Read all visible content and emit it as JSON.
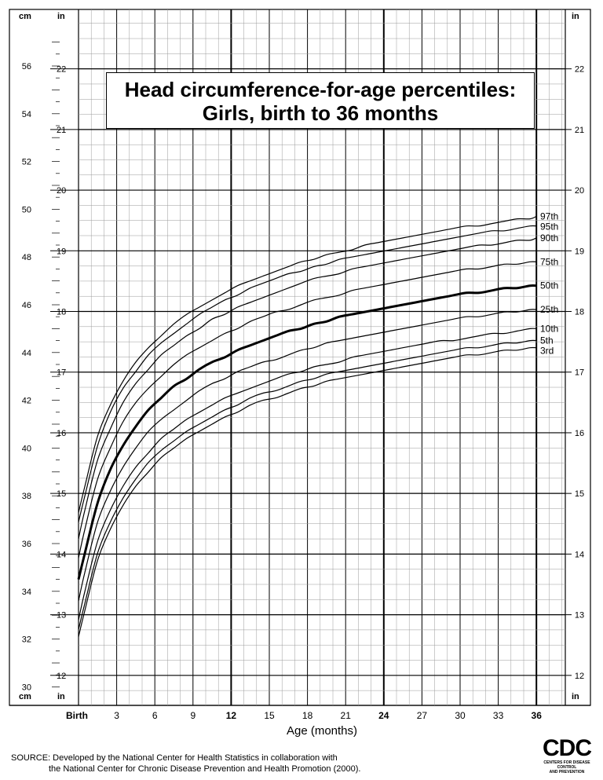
{
  "chart_data": {
    "type": "line",
    "title": "Head circumference-for-age percentiles:",
    "subtitle": "Girls, birth to 36 months",
    "xlabel": "Age (months)",
    "x_tick_labels": [
      "Birth",
      "3",
      "6",
      "9",
      "12",
      "15",
      "18",
      "21",
      "24",
      "27",
      "30",
      "33",
      "36"
    ],
    "x_tick_values": [
      0,
      3,
      6,
      9,
      12,
      15,
      18,
      21,
      24,
      27,
      30,
      33,
      36
    ],
    "xlim": [
      0,
      36
    ],
    "left_axis": {
      "unit": "cm",
      "ticks": [
        "30",
        "32",
        "34",
        "36",
        "38",
        "40",
        "42",
        "44",
        "46",
        "48",
        "50",
        "52",
        "54",
        "56"
      ],
      "tick_values": [
        30,
        32,
        34,
        36,
        38,
        40,
        42,
        44,
        46,
        48,
        50,
        52,
        54,
        56
      ],
      "range": [
        29.8,
        57.5
      ]
    },
    "inch_axis": {
      "unit": "in",
      "ticks": [
        "12",
        "13",
        "14",
        "15",
        "16",
        "17",
        "18",
        "19",
        "20",
        "21",
        "22"
      ],
      "tick_values": [
        12,
        13,
        14,
        15,
        16,
        17,
        18,
        19,
        20,
        21,
        22
      ]
    },
    "x": [
      0,
      0.5,
      1.5,
      2.5,
      3.5,
      4.5,
      5.5,
      6.5,
      7.5,
      8.5,
      9.5,
      10.5,
      11.5,
      12.5,
      13.5,
      14.5,
      15.5,
      16.5,
      17.5,
      18.5,
      19.5,
      20.5,
      21.5,
      22.5,
      23.5,
      24.5,
      25.5,
      26.5,
      27.5,
      28.5,
      29.5,
      30.5,
      31.5,
      32.5,
      33.5,
      34.5,
      35.5,
      36
    ],
    "series": [
      {
        "name": "97th",
        "values": [
          37.3,
          38.4,
          40.5,
          41.8,
          42.8,
          43.6,
          44.2,
          44.7,
          45.2,
          45.6,
          45.9,
          46.2,
          46.5,
          46.8,
          47.0,
          47.2,
          47.4,
          47.6,
          47.8,
          47.9,
          48.1,
          48.2,
          48.3,
          48.5,
          48.6,
          48.7,
          48.8,
          48.9,
          49.0,
          49.1,
          49.2,
          49.3,
          49.3,
          49.4,
          49.5,
          49.6,
          49.6,
          49.7
        ]
      },
      {
        "name": "95th",
        "values": [
          36.9,
          38.0,
          40.1,
          41.5,
          42.5,
          43.2,
          43.9,
          44.4,
          44.8,
          45.2,
          45.6,
          45.9,
          46.2,
          46.4,
          46.7,
          46.9,
          47.1,
          47.3,
          47.4,
          47.6,
          47.7,
          47.9,
          48.0,
          48.1,
          48.2,
          48.3,
          48.4,
          48.5,
          48.6,
          48.7,
          48.8,
          48.9,
          49.0,
          49.1,
          49.1,
          49.2,
          49.3,
          49.3
        ]
      },
      {
        "name": "90th",
        "values": [
          36.2,
          37.4,
          39.5,
          40.8,
          41.9,
          42.7,
          43.3,
          43.9,
          44.3,
          44.7,
          45.0,
          45.4,
          45.6,
          45.9,
          46.1,
          46.3,
          46.5,
          46.7,
          46.9,
          47.1,
          47.2,
          47.3,
          47.5,
          47.6,
          47.7,
          47.8,
          47.9,
          48.0,
          48.1,
          48.2,
          48.3,
          48.4,
          48.5,
          48.5,
          48.6,
          48.7,
          48.7,
          48.8
        ]
      },
      {
        "name": "75th",
        "values": [
          35.4,
          36.6,
          38.7,
          40.0,
          41.1,
          41.9,
          42.5,
          43.0,
          43.5,
          43.9,
          44.2,
          44.5,
          44.8,
          45.0,
          45.3,
          45.5,
          45.7,
          45.8,
          46.0,
          46.2,
          46.3,
          46.4,
          46.6,
          46.7,
          46.8,
          46.9,
          47.0,
          47.1,
          47.2,
          47.3,
          47.4,
          47.5,
          47.5,
          47.6,
          47.7,
          47.7,
          47.8,
          47.8
        ]
      },
      {
        "name": "50th",
        "values": [
          34.5,
          35.6,
          37.7,
          39.1,
          40.1,
          40.9,
          41.6,
          42.1,
          42.6,
          42.9,
          43.3,
          43.6,
          43.8,
          44.1,
          44.3,
          44.5,
          44.7,
          44.9,
          45.0,
          45.2,
          45.3,
          45.5,
          45.6,
          45.7,
          45.8,
          45.9,
          46.0,
          46.1,
          46.2,
          46.3,
          46.4,
          46.5,
          46.5,
          46.6,
          46.7,
          46.7,
          46.8,
          46.8
        ]
      },
      {
        "name": "25th",
        "values": [
          33.6,
          34.8,
          36.9,
          38.2,
          39.2,
          40.0,
          40.7,
          41.2,
          41.6,
          42.0,
          42.4,
          42.7,
          42.9,
          43.2,
          43.4,
          43.6,
          43.7,
          43.9,
          44.1,
          44.2,
          44.4,
          44.5,
          44.6,
          44.7,
          44.8,
          44.9,
          45.0,
          45.1,
          45.2,
          45.3,
          45.4,
          45.5,
          45.5,
          45.6,
          45.7,
          45.7,
          45.8,
          45.8
        ]
      },
      {
        "name": "10th",
        "values": [
          32.8,
          34.0,
          36.1,
          37.4,
          38.4,
          39.2,
          39.8,
          40.4,
          40.8,
          41.2,
          41.5,
          41.8,
          42.1,
          42.3,
          42.5,
          42.7,
          42.9,
          43.1,
          43.2,
          43.4,
          43.5,
          43.6,
          43.8,
          43.9,
          44.0,
          44.1,
          44.2,
          44.3,
          44.4,
          44.5,
          44.5,
          44.6,
          44.7,
          44.8,
          44.8,
          44.9,
          45.0,
          45.0
        ]
      },
      {
        "name": "5th",
        "values": [
          32.4,
          33.5,
          35.6,
          36.9,
          37.9,
          38.7,
          39.4,
          39.9,
          40.3,
          40.7,
          41.0,
          41.3,
          41.6,
          41.8,
          42.1,
          42.3,
          42.4,
          42.6,
          42.8,
          42.9,
          43.1,
          43.2,
          43.3,
          43.4,
          43.5,
          43.6,
          43.7,
          43.8,
          43.9,
          44.0,
          44.1,
          44.2,
          44.2,
          44.3,
          44.4,
          44.4,
          44.5,
          44.5
        ]
      },
      {
        "name": "3rd",
        "values": [
          32.1,
          33.2,
          35.3,
          36.6,
          37.6,
          38.4,
          39.0,
          39.6,
          40.0,
          40.4,
          40.7,
          41.0,
          41.3,
          41.5,
          41.8,
          42.0,
          42.1,
          42.3,
          42.5,
          42.6,
          42.8,
          42.9,
          43.0,
          43.1,
          43.2,
          43.3,
          43.4,
          43.5,
          43.6,
          43.7,
          43.8,
          43.9,
          43.9,
          44.0,
          44.1,
          44.1,
          44.2,
          44.2
        ]
      }
    ],
    "highlight_series": "50th",
    "grid": true,
    "legend": "series labels at right end of curves"
  },
  "source": {
    "line1": "SOURCE: Developed by the National Center for Health Statistics in collaboration with",
    "line2": "the National Center for Chronic Disease Prevention and Health Promotion (2000)."
  },
  "logo": {
    "text": "CDC",
    "sub1": "CENTERS FOR DISEASE CONTROL",
    "sub2": "AND PREVENTION"
  }
}
